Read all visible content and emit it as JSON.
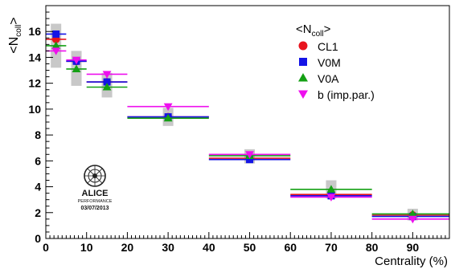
{
  "chart_data": {
    "type": "scatter",
    "title": "",
    "xlabel": "Centrality (%)",
    "ylabel": "<N_coll>",
    "xlim": [
      0,
      99
    ],
    "ylim": [
      0,
      18
    ],
    "x_ticks": [
      0,
      10,
      20,
      30,
      40,
      50,
      60,
      70,
      80,
      90
    ],
    "y_ticks": [
      0,
      2,
      4,
      6,
      8,
      10,
      12,
      14,
      16
    ],
    "grid": false,
    "legend": {
      "title": "<N_coll>",
      "placement": "top-right",
      "entries": [
        "CL1",
        "V0M",
        "V0A",
        "b (imp.par.)"
      ]
    },
    "bins": [
      {
        "lo": 0,
        "hi": 5,
        "center": 2.5,
        "syst_low": 13.2,
        "syst_high": 16.6
      },
      {
        "lo": 5,
        "hi": 10,
        "center": 7.5,
        "syst_low": 11.8,
        "syst_high": 14.5
      },
      {
        "lo": 10,
        "hi": 20,
        "center": 15,
        "syst_low": 10.9,
        "syst_high": 12.8
      },
      {
        "lo": 20,
        "hi": 40,
        "center": 30,
        "syst_low": 8.7,
        "syst_high": 10.1
      },
      {
        "lo": 40,
        "hi": 60,
        "center": 50,
        "syst_low": 5.8,
        "syst_high": 6.9
      },
      {
        "lo": 60,
        "hi": 80,
        "center": 70,
        "syst_low": 3.1,
        "syst_high": 4.5
      },
      {
        "lo": 80,
        "hi": 100,
        "center": 90,
        "syst_low": 1.4,
        "syst_high": 2.3
      }
    ],
    "series": [
      {
        "name": "CL1",
        "color": "#e8141e",
        "marker": "circle",
        "values": [
          15.4,
          13.7,
          12.1,
          9.4,
          6.2,
          3.4,
          1.8
        ]
      },
      {
        "name": "V0M",
        "color": "#1414e6",
        "marker": "square",
        "values": [
          15.8,
          13.7,
          12.1,
          9.4,
          6.1,
          3.3,
          1.7
        ]
      },
      {
        "name": "V0A",
        "color": "#14a014",
        "marker": "triangle-up",
        "values": [
          14.9,
          13.1,
          11.7,
          9.3,
          6.4,
          3.8,
          1.9
        ]
      },
      {
        "name": "b (imp.par.)",
        "color": "#ee10ee",
        "marker": "triangle-down",
        "values": [
          14.5,
          13.8,
          12.7,
          10.2,
          6.5,
          3.2,
          1.5
        ]
      }
    ]
  },
  "logo": {
    "name": "ALICE",
    "subtitle": "PERFORMANCE",
    "date": "03/07/2013"
  }
}
